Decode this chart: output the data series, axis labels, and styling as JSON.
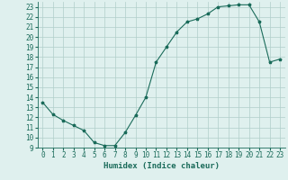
{
  "xlabel": "Humidex (Indice chaleur)",
  "x_values": [
    0,
    1,
    2,
    3,
    4,
    5,
    6,
    7,
    8,
    9,
    10,
    11,
    12,
    13,
    14,
    15,
    16,
    17,
    18,
    19,
    20,
    21,
    22,
    23
  ],
  "y_values": [
    13.5,
    12.3,
    11.7,
    11.2,
    10.7,
    9.5,
    9.2,
    9.2,
    10.5,
    12.2,
    14.0,
    17.5,
    19.0,
    20.5,
    21.5,
    21.8,
    22.3,
    23.0,
    23.1,
    23.2,
    23.2,
    21.5,
    17.5,
    17.8
  ],
  "line_color": "#1a6b5a",
  "marker": "*",
  "marker_size": 2.5,
  "bg_color": "#dff0ee",
  "grid_color": "#b0ceca",
  "ylim": [
    9,
    23.5
  ],
  "xlim": [
    -0.5,
    23.5
  ],
  "yticks": [
    9,
    10,
    11,
    12,
    13,
    14,
    15,
    16,
    17,
    18,
    19,
    20,
    21,
    22,
    23
  ],
  "xticks": [
    0,
    1,
    2,
    3,
    4,
    5,
    6,
    7,
    8,
    9,
    10,
    11,
    12,
    13,
    14,
    15,
    16,
    17,
    18,
    19,
    20,
    21,
    22,
    23
  ],
  "tick_fontsize": 5.5,
  "xlabel_fontsize": 6.5,
  "spine_color": "#1a6b5a",
  "line_width": 0.8
}
